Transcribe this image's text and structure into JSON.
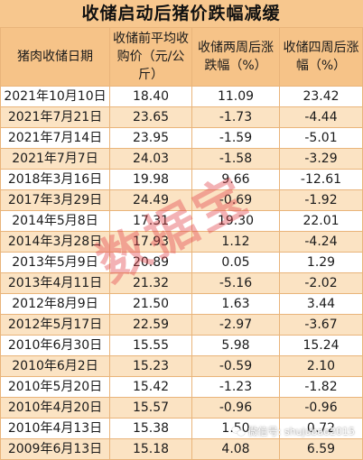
{
  "title": "收储启动后猪价跌幅减缓",
  "watermark": "数据宝",
  "credit": "微信号: shujubao2015",
  "chart_data": {
    "type": "table",
    "title": "收储启动后猪价跌幅减缓",
    "columns": [
      "猪肉收储日期",
      "收储前平均收购价（元/公斤）",
      "收储两周后涨跌幅（%）",
      "收储四周后涨幅（%）"
    ],
    "rows": [
      [
        "2021年10月10日",
        "18.40",
        "11.09",
        "23.42"
      ],
      [
        "2021年7月21日",
        "23.65",
        "-1.73",
        "-4.44"
      ],
      [
        "2021年7月14日",
        "23.95",
        "-1.59",
        "-5.01"
      ],
      [
        "2021年7月7日",
        "24.03",
        "-1.58",
        "-3.29"
      ],
      [
        "2018年3月16日",
        "19.98",
        "9.66",
        "-12.61"
      ],
      [
        "2017年3月29日",
        "24.49",
        "-0.69",
        "-1.92"
      ],
      [
        "2014年5月8日",
        "17.31",
        "19.30",
        "22.01"
      ],
      [
        "2014年3月28日",
        "17.93",
        "1.12",
        "-4.24"
      ],
      [
        "2013年5月9日",
        "20.89",
        "0.05",
        "1.29"
      ],
      [
        "2013年4月11日",
        "21.32",
        "-5.16",
        "-2.02"
      ],
      [
        "2012年8月9日",
        "21.50",
        "1.63",
        "3.44"
      ],
      [
        "2012年5月17日",
        "22.59",
        "-2.97",
        "-3.67"
      ],
      [
        "2010年6月30日",
        "15.55",
        "5.98",
        "15.24"
      ],
      [
        "2010年6月2日",
        "15.23",
        "-0.59",
        "2.10"
      ],
      [
        "2010年5月20日",
        "15.42",
        "-1.23",
        "-1.82"
      ],
      [
        "2010年4月20日",
        "15.57",
        "-0.96",
        "-0.96"
      ],
      [
        "2010年4月13日",
        "15.38",
        "1.50",
        "0.72"
      ],
      [
        "2009年6月13日",
        "15.18",
        "4.08",
        "6.59"
      ]
    ]
  }
}
